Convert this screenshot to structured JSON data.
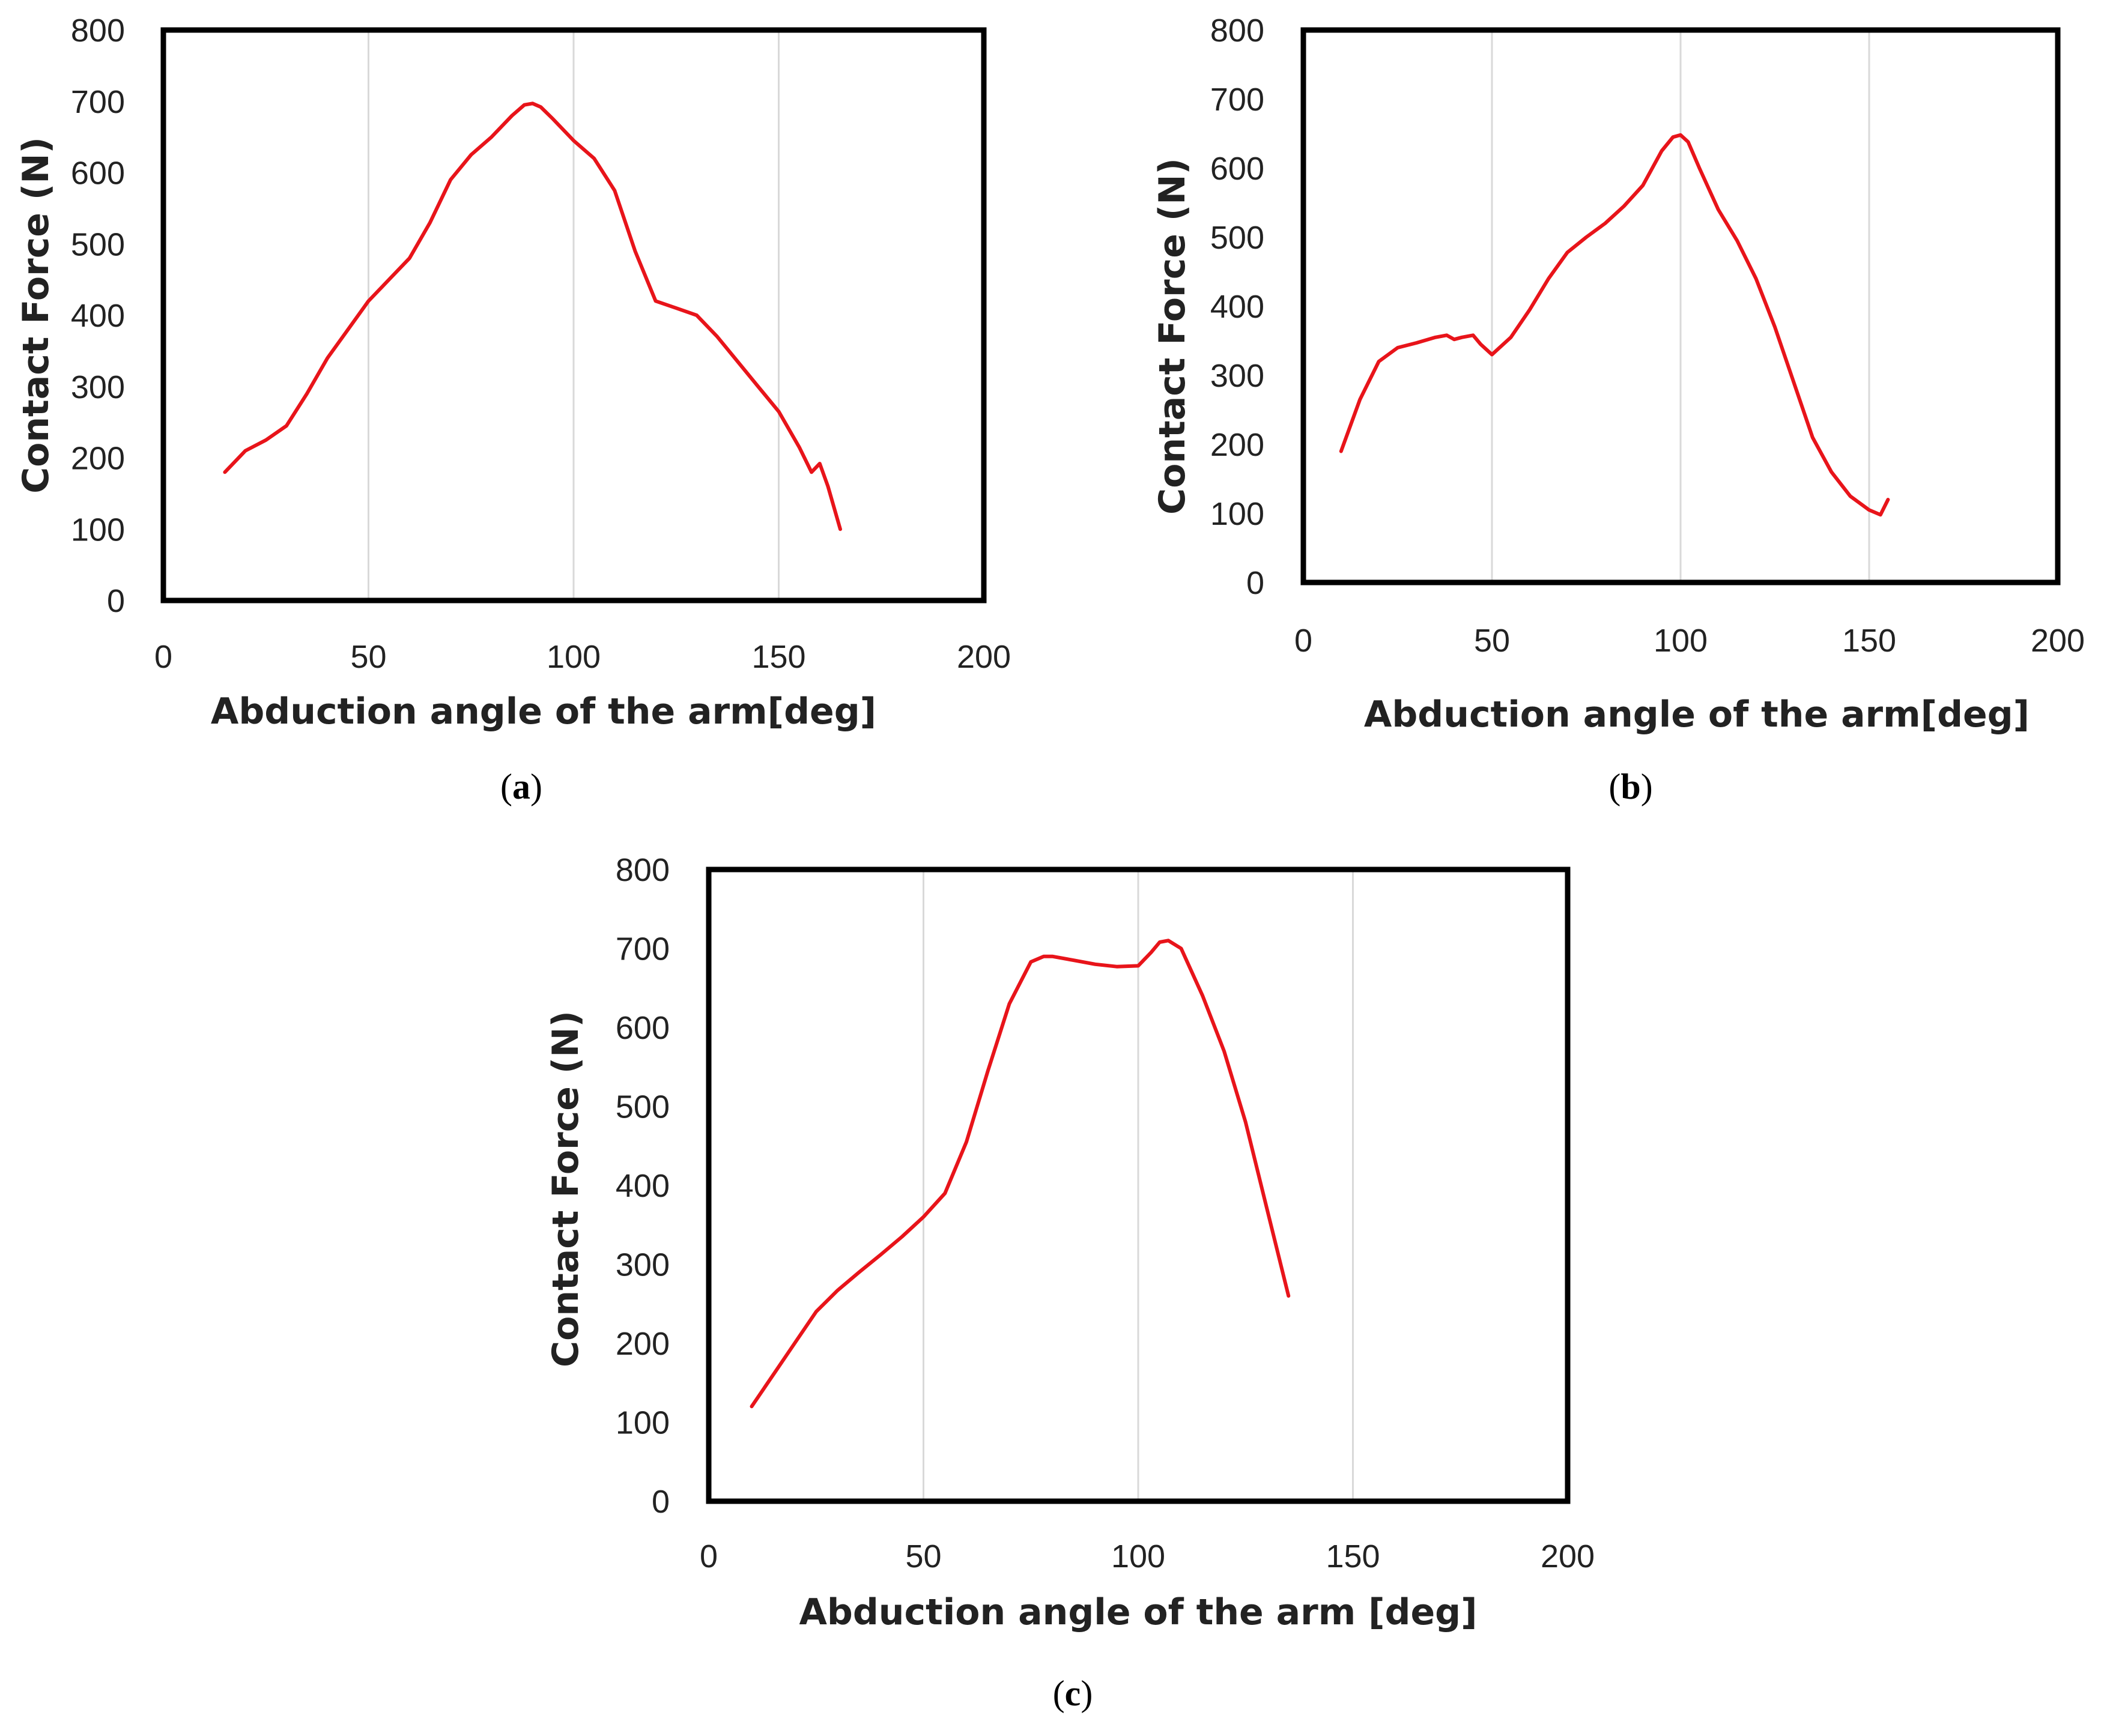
{
  "colors": {
    "series": "#e8141a",
    "frame": "#000000",
    "grid": "#d9d9d9",
    "text": "#222222"
  },
  "chart_data": [
    {
      "type": "line",
      "panel": "a",
      "caption": {
        "open": "(",
        "letter": "a",
        "close": ")"
      },
      "xlabel": "Abduction angle of the arm[deg]",
      "ylabel": "Contact Force (N)",
      "xlim": [
        0,
        200
      ],
      "ylim": [
        0,
        800
      ],
      "xticks": [
        0,
        50,
        100,
        150,
        200
      ],
      "yticks": [
        0,
        100,
        200,
        300,
        400,
        500,
        600,
        700,
        800
      ],
      "grid": "vertical",
      "series": [
        {
          "name": "Contact Force",
          "x": [
            15,
            20,
            25,
            30,
            35,
            40,
            45,
            50,
            55,
            60,
            65,
            70,
            75,
            80,
            85,
            88,
            90,
            92,
            95,
            100,
            105,
            110,
            115,
            120,
            125,
            130,
            135,
            140,
            145,
            150,
            155,
            158,
            160,
            162,
            165
          ],
          "y": [
            180,
            210,
            225,
            245,
            290,
            340,
            380,
            420,
            450,
            480,
            530,
            590,
            625,
            650,
            680,
            695,
            697,
            692,
            675,
            645,
            620,
            575,
            490,
            420,
            410,
            400,
            370,
            335,
            300,
            265,
            215,
            180,
            192,
            160,
            100
          ]
        }
      ]
    },
    {
      "type": "line",
      "panel": "b",
      "caption": {
        "open": "(",
        "letter": "b",
        "close": ")"
      },
      "xlabel": "Abduction angle of the arm[deg]",
      "ylabel": "Contact Force (N)",
      "xlim": [
        0,
        200
      ],
      "ylim": [
        0,
        800
      ],
      "xticks": [
        0,
        50,
        100,
        150,
        200
      ],
      "yticks": [
        0,
        100,
        200,
        300,
        400,
        500,
        600,
        700,
        800
      ],
      "grid": "vertical",
      "series": [
        {
          "name": "Contact Force",
          "x": [
            10,
            15,
            20,
            25,
            30,
            35,
            38,
            40,
            42,
            45,
            47,
            50,
            55,
            60,
            65,
            70,
            75,
            80,
            85,
            90,
            95,
            98,
            100,
            102,
            105,
            110,
            115,
            120,
            125,
            130,
            135,
            140,
            145,
            150,
            153,
            155
          ],
          "y": [
            190,
            265,
            320,
            340,
            347,
            355,
            358,
            352,
            355,
            358,
            345,
            330,
            355,
            395,
            440,
            478,
            500,
            520,
            545,
            575,
            625,
            645,
            648,
            638,
            600,
            540,
            495,
            440,
            370,
            290,
            210,
            160,
            125,
            105,
            98,
            120
          ]
        }
      ]
    },
    {
      "type": "line",
      "panel": "c",
      "caption": {
        "open": "(",
        "letter": "c",
        "close": ")"
      },
      "xlabel": "Abduction angle of the arm [deg]",
      "ylabel": "Contact Force (N)",
      "xlim": [
        0,
        200
      ],
      "ylim": [
        0,
        800
      ],
      "xticks": [
        0,
        50,
        100,
        150,
        200
      ],
      "yticks": [
        0,
        100,
        200,
        300,
        400,
        500,
        600,
        700,
        800
      ],
      "grid": "vertical",
      "series": [
        {
          "name": "Contact Force",
          "x": [
            10,
            15,
            20,
            25,
            30,
            35,
            40,
            45,
            50,
            55,
            60,
            65,
            70,
            75,
            78,
            80,
            85,
            90,
            95,
            100,
            103,
            105,
            107,
            110,
            115,
            120,
            125,
            130,
            135
          ],
          "y": [
            120,
            160,
            200,
            240,
            267,
            290,
            312,
            335,
            360,
            390,
            455,
            545,
            630,
            683,
            690,
            690,
            685,
            680,
            677,
            678,
            695,
            708,
            710,
            700,
            640,
            570,
            480,
            370,
            260
          ]
        }
      ]
    }
  ]
}
